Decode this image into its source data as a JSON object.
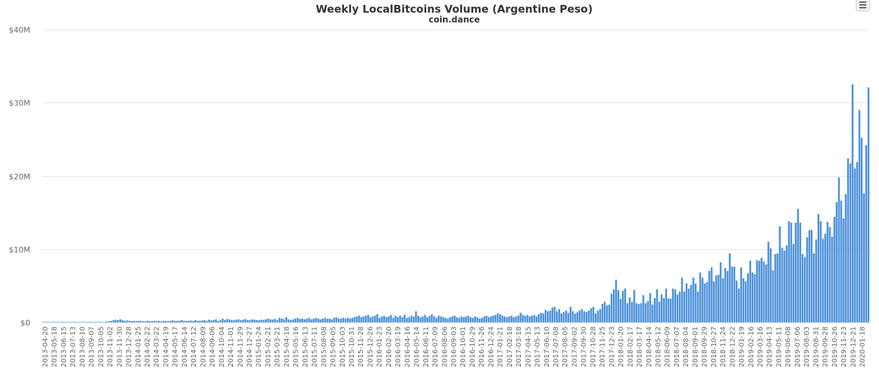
{
  "chart_data": {
    "type": "bar",
    "title": "Weekly LocalBitcoins Volume (Argentine Peso)",
    "subtitle": "coin.dance",
    "xlabel": "",
    "ylabel": "",
    "ylim": [
      0,
      40000000
    ],
    "y_ticks": [
      0,
      10000000,
      20000000,
      30000000,
      40000000
    ],
    "y_tick_labels": [
      "$0",
      "$10M",
      "$20M",
      "$30M",
      "$40M"
    ],
    "grid": true,
    "legend": "none",
    "bar_color": "#4a90d9",
    "x_tick_labels": [
      "2013-04-20",
      "2013-05-18",
      "2013-06-15",
      "2013-07-13",
      "2013-08-10",
      "2013-09-07",
      "2013-10-05",
      "2013-11-02",
      "2013-11-30",
      "2013-12-28",
      "2014-01-25",
      "2014-02-22",
      "2014-03-22",
      "2014-04-19",
      "2014-05-17",
      "2014-06-14",
      "2014-07-12",
      "2014-08-09",
      "2014-09-06",
      "2014-10-04",
      "2014-11-01",
      "2014-11-29",
      "2014-12-27",
      "2015-01-24",
      "2015-02-21",
      "2015-03-21",
      "2015-04-18",
      "2015-05-16",
      "2015-06-13",
      "2015-07-11",
      "2015-08-08",
      "2015-09-05",
      "2015-10-03",
      "2015-10-31",
      "2015-11-28",
      "2015-12-26",
      "2016-01-23",
      "2016-02-20",
      "2016-03-19",
      "2016-04-16",
      "2016-05-14",
      "2016-06-11",
      "2016-07-09",
      "2016-08-06",
      "2016-09-03",
      "2016-10-01",
      "2016-10-29",
      "2016-11-26",
      "2016-12-24",
      "2017-01-21",
      "2017-02-18",
      "2017-03-18",
      "2017-04-15",
      "2017-05-13",
      "2017-06-10",
      "2017-07-08",
      "2017-08-05",
      "2017-09-02",
      "2017-09-30",
      "2017-10-28",
      "2017-11-25",
      "2017-12-23",
      "2018-01-20",
      "2018-02-17",
      "2018-03-17",
      "2018-04-14",
      "2018-05-12",
      "2018-06-09",
      "2018-07-07",
      "2018-08-04",
      "2018-09-01",
      "2018-09-29",
      "2018-10-27",
      "2018-11-24",
      "2018-12-22",
      "2019-01-19",
      "2019-02-16",
      "2019-03-16",
      "2019-04-13",
      "2019-05-11",
      "2019-06-08",
      "2019-07-06",
      "2019-08-03",
      "2019-08-31",
      "2019-09-28",
      "2019-10-26",
      "2019-11-23",
      "2019-12-21",
      "2020-01-18"
    ],
    "values_millions": [
      0.05,
      0.05,
      0.05,
      0.05,
      0.05,
      0.05,
      0.05,
      0.05,
      0.05,
      0.05,
      0.05,
      0.05,
      0.05,
      0.05,
      0.05,
      0.05,
      0.05,
      0.05,
      0.05,
      0.05,
      0.05,
      0.05,
      0.05,
      0.05,
      0.05,
      0.05,
      0.05,
      0.05,
      0.1,
      0.15,
      0.2,
      0.3,
      0.35,
      0.3,
      0.4,
      0.3,
      0.2,
      0.25,
      0.2,
      0.15,
      0.2,
      0.15,
      0.2,
      0.2,
      0.15,
      0.15,
      0.2,
      0.15,
      0.15,
      0.2,
      0.15,
      0.2,
      0.15,
      0.2,
      0.2,
      0.15,
      0.2,
      0.25,
      0.2,
      0.2,
      0.2,
      0.3,
      0.2,
      0.2,
      0.2,
      0.25,
      0.2,
      0.3,
      0.2,
      0.2,
      0.25,
      0.3,
      0.2,
      0.35,
      0.25,
      0.3,
      0.4,
      0.2,
      0.3,
      0.5,
      0.3,
      0.45,
      0.4,
      0.3,
      0.3,
      0.35,
      0.4,
      0.3,
      0.35,
      0.45,
      0.3,
      0.3,
      0.4,
      0.35,
      0.3,
      0.3,
      0.35,
      0.3,
      0.4,
      0.5,
      0.4,
      0.35,
      0.45,
      0.3,
      0.6,
      0.5,
      0.4,
      0.7,
      0.4,
      0.3,
      0.4,
      0.5,
      0.6,
      0.45,
      0.5,
      0.4,
      0.5,
      0.6,
      0.4,
      0.5,
      0.6,
      0.5,
      0.4,
      0.5,
      0.6,
      0.5,
      0.5,
      0.4,
      0.6,
      0.7,
      0.5,
      0.5,
      0.6,
      0.5,
      0.6,
      0.5,
      0.6,
      0.7,
      0.8,
      0.9,
      0.7,
      0.8,
      0.9,
      1.0,
      0.7,
      0.8,
      0.9,
      1.1,
      0.6,
      0.8,
      0.9,
      0.7,
      0.8,
      1.0,
      0.6,
      0.9,
      0.7,
      0.9,
      0.7,
      1.0,
      0.6,
      0.7,
      0.9,
      0.8,
      1.5,
      0.9,
      0.7,
      0.8,
      1.0,
      0.7,
      0.9,
      1.1,
      0.8,
      0.6,
      0.9,
      0.8,
      0.7,
      0.6,
      0.5,
      0.7,
      0.8,
      0.9,
      0.7,
      0.6,
      0.8,
      0.7,
      0.8,
      0.9,
      0.7,
      0.6,
      0.8,
      0.7,
      0.5,
      0.6,
      0.8,
      0.9,
      0.7,
      0.8,
      0.9,
      1.0,
      1.2,
      1.1,
      0.9,
      0.8,
      0.7,
      0.8,
      0.9,
      0.7,
      0.8,
      0.9,
      1.3,
      1.0,
      0.9,
      1.0,
      0.8,
      0.9,
      1.0,
      0.8,
      1.1,
      1.3,
      1.2,
      1.7,
      1.5,
      1.6,
      2.0,
      2.1,
      1.5,
      1.8,
      1.2,
      1.4,
      1.6,
      1.3,
      2.1,
      1.5,
      1.2,
      1.4,
      1.6,
      1.8,
      1.5,
      1.4,
      1.6,
      1.9,
      2.1,
      1.2,
      1.6,
      1.8,
      2.5,
      2.8,
      2.3,
      2.4,
      3.9,
      4.5,
      5.8,
      4.4,
      3.2,
      4.3,
      4.6,
      2.6,
      3.4,
      2.8,
      4.4,
      2.6,
      2.5,
      2.6,
      3.7,
      2.6,
      2.9,
      4.0,
      2.4,
      3.3,
      4.5,
      2.8,
      3.8,
      3.3,
      4.6,
      3.3,
      3.2,
      4.6,
      4.5,
      3.8,
      4.2,
      6.1,
      4.2,
      5.3,
      4.6,
      5.1,
      6.1,
      5.3,
      4.2,
      6.8,
      6.1,
      5.3,
      5.5,
      7.0,
      7.5,
      5.6,
      6.4,
      6.5,
      8.2,
      6.0,
      7.4,
      7.0,
      9.4,
      7.6,
      7.6,
      5.7,
      4.6,
      7.5,
      6.0,
      5.6,
      6.7,
      8.4,
      6.8,
      6.6,
      8.5,
      8.4,
      8.8,
      8.3,
      7.9,
      11.0,
      10.1,
      7.1,
      9.3,
      9.4,
      13.1,
      10.2,
      9.8,
      10.5,
      13.8,
      13.6,
      10.7,
      13.6,
      15.5,
      13.6,
      9.3,
      8.9,
      11.6,
      12.6,
      12.6,
      9.4,
      11.3,
      14.8,
      13.8,
      11.4,
      12.1,
      13.7,
      13.0,
      11.7,
      14.4,
      16.4,
      19.8,
      16.6,
      14.2,
      17.5,
      22.4,
      21.7,
      32.5,
      21.0,
      21.9,
      29.0,
      25.2,
      17.6,
      24.2,
      32.1
    ]
  }
}
